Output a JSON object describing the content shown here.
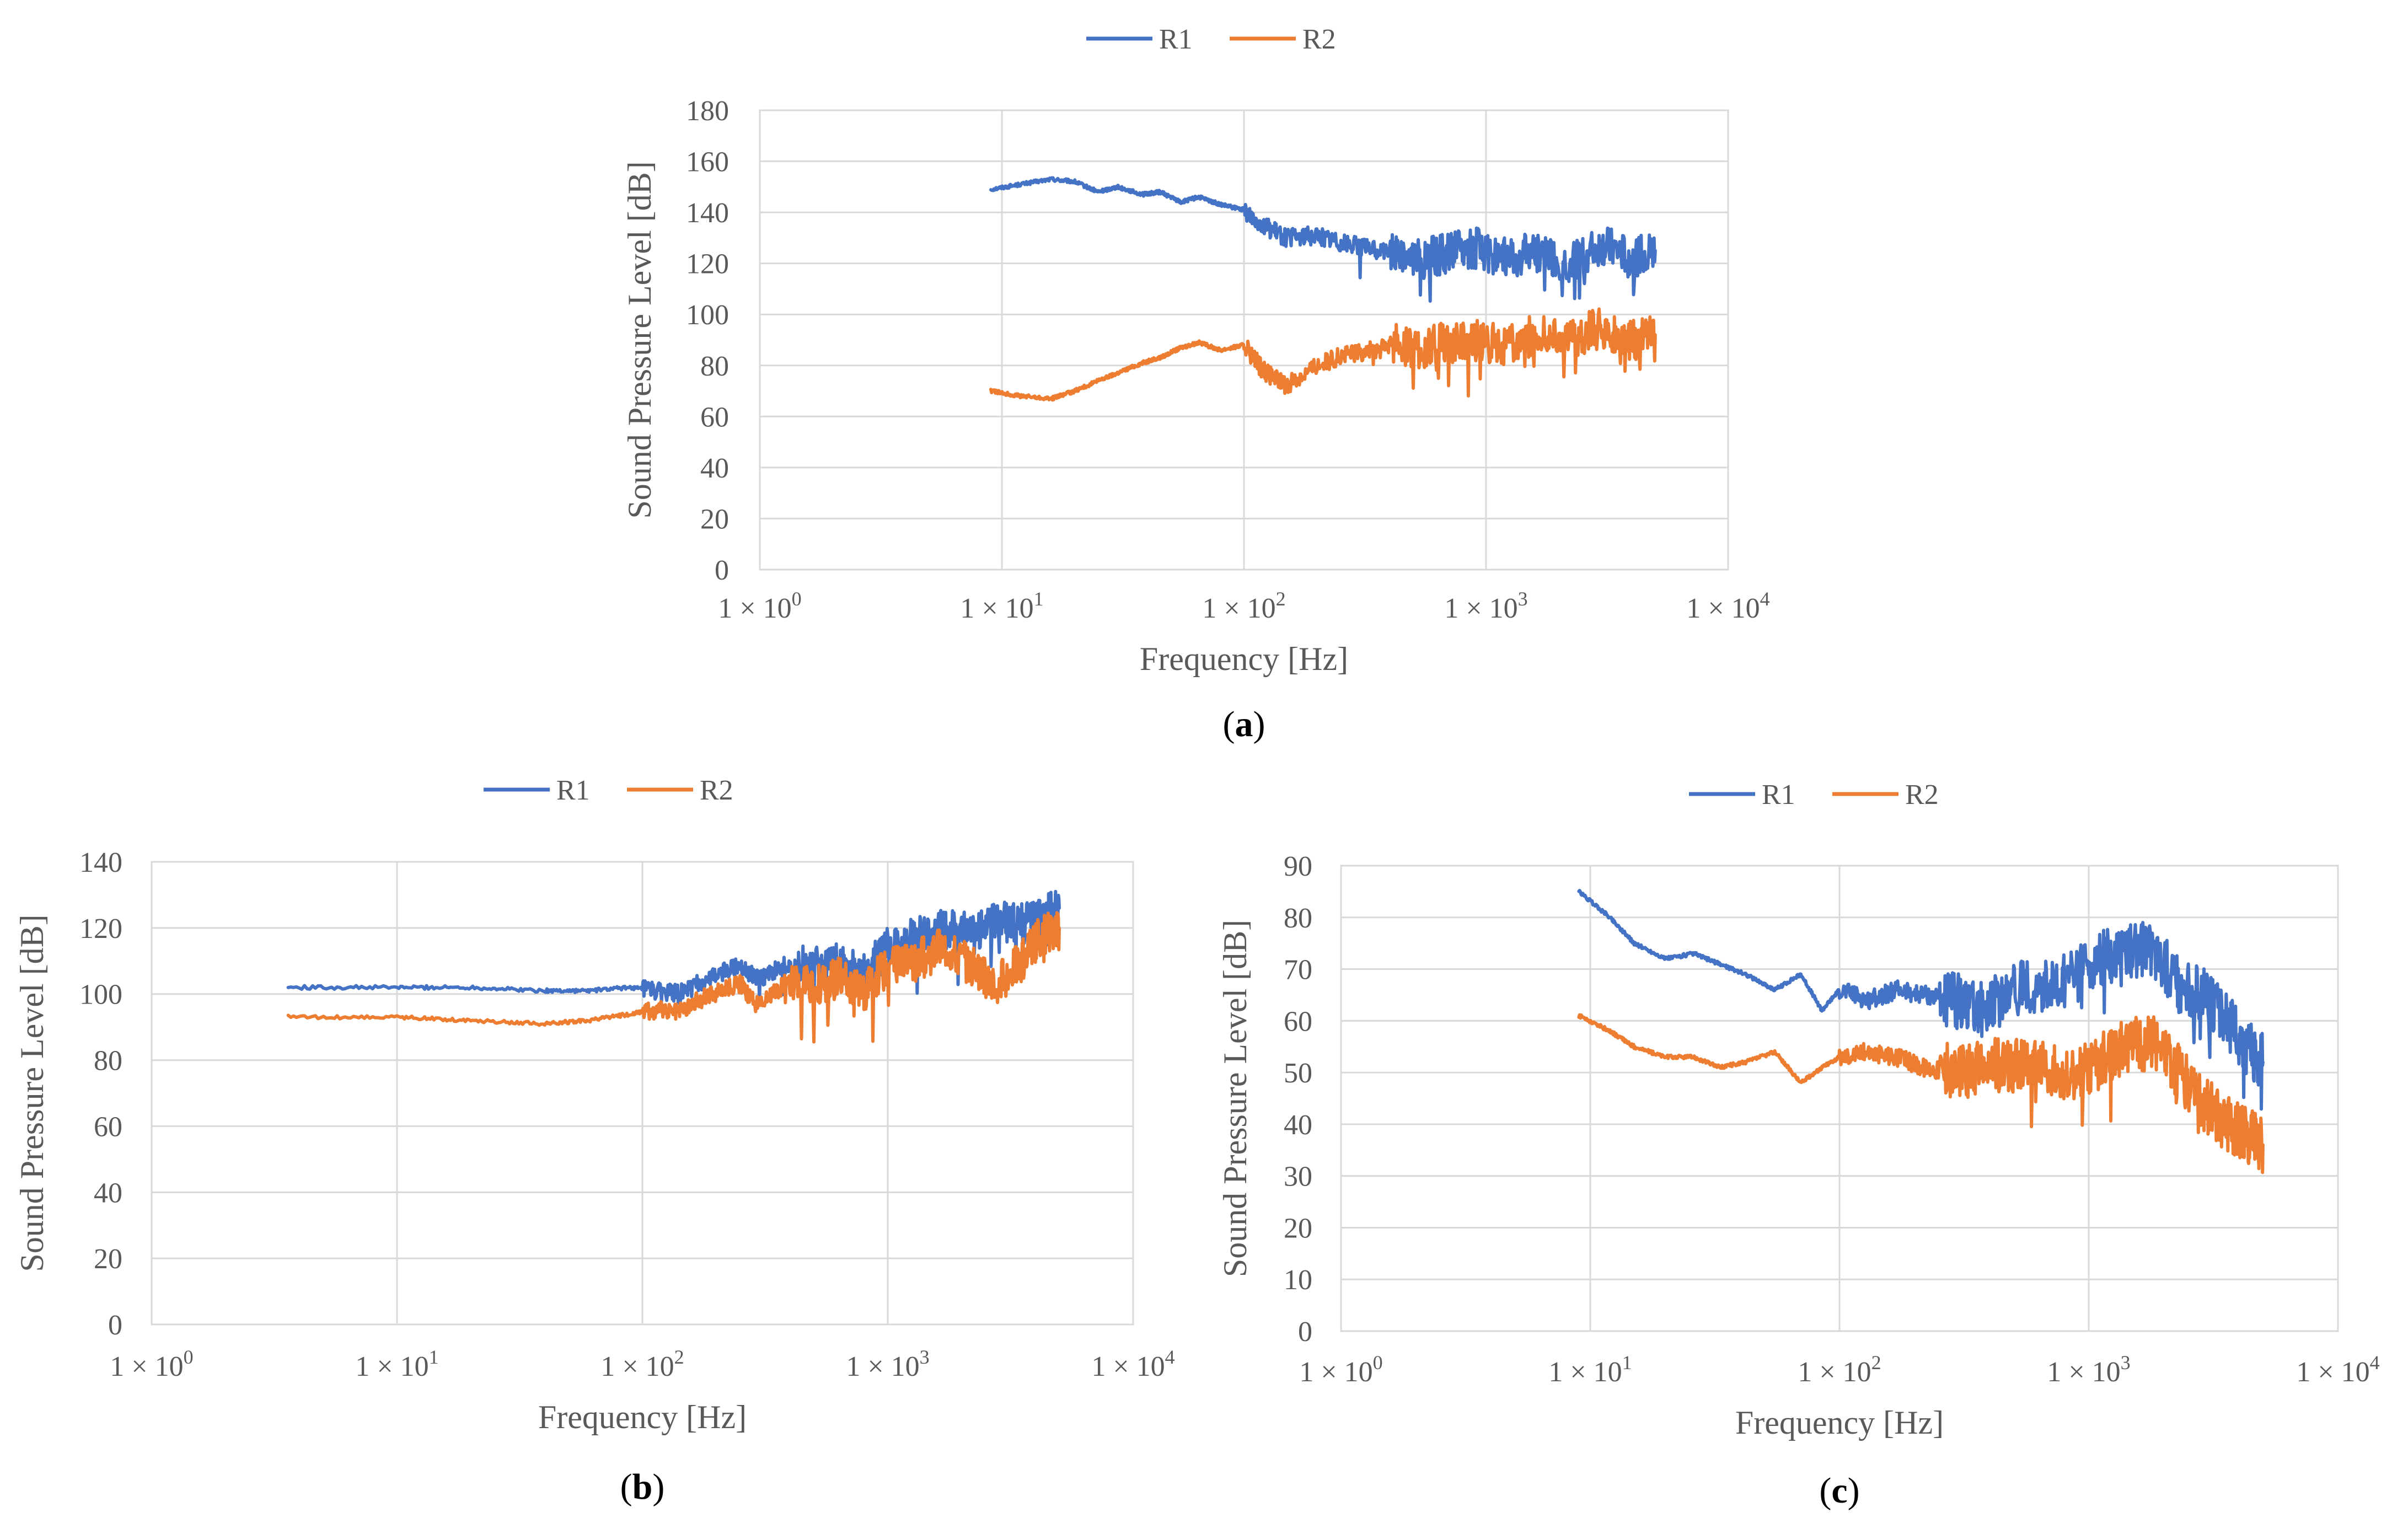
{
  "colors": {
    "R1": "#4472c4",
    "R2": "#ed7d31"
  },
  "chart_data": [
    {
      "id": "a",
      "type": "line",
      "caption_paren_open": "(",
      "caption_letter": "a",
      "caption_paren_close": ")",
      "xscale": "log",
      "xlabel": "Frequency [Hz]",
      "ylabel": "Sound Pressure Level [dB]",
      "xlim": [
        1,
        10000
      ],
      "ylim": [
        0,
        180
      ],
      "yticks": [
        0,
        20,
        40,
        60,
        80,
        100,
        120,
        140,
        160,
        180
      ],
      "xticks": [
        {
          "base": "1 × 10",
          "exp": "0"
        },
        {
          "base": "1 × 10",
          "exp": "1"
        },
        {
          "base": "1 × 10",
          "exp": "2"
        },
        {
          "base": "1 × 10",
          "exp": "3"
        },
        {
          "base": "1 × 10",
          "exp": "4"
        }
      ],
      "legend": [
        {
          "name": "R1",
          "key": "R1"
        },
        {
          "name": "R2",
          "key": "R2"
        }
      ],
      "series": [
        {
          "name": "R1",
          "x": [
            9,
            12,
            16,
            20,
            25,
            30,
            38,
            45,
            55,
            65,
            80,
            100,
            120,
            150,
            200,
            260,
            330,
            420,
            550,
            700,
            900,
            1200,
            1600,
            2200,
            3000,
            4000,
            5000
          ],
          "y": [
            149,
            151,
            153,
            152,
            148,
            150,
            147,
            148,
            144,
            146,
            143,
            141,
            135,
            130,
            131,
            128,
            126,
            124,
            122,
            124,
            126,
            122,
            125,
            120,
            127,
            122,
            125
          ]
        },
        {
          "name": "R2",
          "x": [
            9,
            12,
            16,
            20,
            25,
            30,
            38,
            45,
            55,
            65,
            80,
            100,
            120,
            150,
            200,
            260,
            330,
            420,
            550,
            700,
            900,
            1200,
            1600,
            2200,
            3000,
            4000,
            5000
          ],
          "y": [
            70,
            68,
            67,
            70,
            74,
            77,
            81,
            83,
            87,
            89,
            86,
            88,
            78,
            72,
            80,
            84,
            86,
            88,
            87,
            89,
            90,
            88,
            92,
            90,
            95,
            90,
            92
          ]
        }
      ]
    },
    {
      "id": "b",
      "type": "line",
      "caption_paren_open": "(",
      "caption_letter": "b",
      "caption_paren_close": ")",
      "xscale": "log",
      "xlabel": "Frequency [Hz]",
      "ylabel": "Sound Pressure Level [dB]",
      "xlim": [
        1,
        10000
      ],
      "ylim": [
        0,
        140
      ],
      "yticks": [
        0,
        20,
        40,
        60,
        80,
        100,
        120,
        140
      ],
      "xticks": [
        {
          "base": "1 × 10",
          "exp": "0"
        },
        {
          "base": "1 × 10",
          "exp": "1"
        },
        {
          "base": "1 × 10",
          "exp": "2"
        },
        {
          "base": "1 × 10",
          "exp": "3"
        },
        {
          "base": "1 × 10",
          "exp": "4"
        }
      ],
      "legend": [
        {
          "name": "R1",
          "key": "R1"
        },
        {
          "name": "R2",
          "key": "R2"
        }
      ],
      "series": [
        {
          "name": "R1",
          "x": [
            3.6,
            10,
            20,
            40,
            60,
            90,
            110,
            140,
            180,
            250,
            300,
            380,
            500,
            650,
            800,
            1000,
            1300,
            1700,
            2200,
            2800,
            3500,
            4200,
            5000
          ],
          "y": [
            102,
            102,
            102,
            101,
            101,
            102,
            101,
            100,
            104,
            109,
            104,
            109,
            108,
            110,
            106,
            114,
            117,
            120,
            118,
            122,
            121,
            124,
            126
          ]
        },
        {
          "name": "R2",
          "x": [
            3.6,
            10,
            20,
            40,
            60,
            90,
            110,
            140,
            180,
            250,
            300,
            380,
            500,
            650,
            800,
            1000,
            1300,
            1700,
            2200,
            2800,
            3500,
            4200,
            5000
          ],
          "y": [
            93,
            93,
            92,
            91,
            92,
            94,
            95,
            95,
            99,
            103,
            96,
            103,
            102,
            105,
            101,
            108,
            110,
            114,
            108,
            103,
            110,
            118,
            120
          ]
        }
      ]
    },
    {
      "id": "c",
      "type": "line",
      "caption_paren_open": "(",
      "caption_letter": "c",
      "caption_paren_close": ")",
      "xscale": "log",
      "xlabel": "Frequency [Hz]",
      "ylabel": "Sound Pressure Level [dB]",
      "xlim": [
        1,
        10000
      ],
      "ylim": [
        0,
        90
      ],
      "yticks": [
        0,
        10,
        20,
        30,
        40,
        50,
        60,
        70,
        80,
        90
      ],
      "xticks": [
        {
          "base": "1 × 10",
          "exp": "0"
        },
        {
          "base": "1 × 10",
          "exp": "1"
        },
        {
          "base": "1 × 10",
          "exp": "2"
        },
        {
          "base": "1 × 10",
          "exp": "3"
        },
        {
          "base": "1 × 10",
          "exp": "4"
        }
      ],
      "legend": [
        {
          "name": "R1",
          "key": "R1"
        },
        {
          "name": "R2",
          "key": "R2"
        }
      ],
      "series": [
        {
          "name": "R1",
          "x": [
            9,
            12,
            15,
            20,
            26,
            33,
            42,
            55,
            70,
            85,
            100,
            130,
            170,
            220,
            290,
            380,
            500,
            650,
            850,
            1100,
            1400,
            1800,
            2300,
            2900,
            3600,
            4300,
            5000
          ],
          "y": [
            85,
            80,
            75,
            72,
            73,
            71,
            69,
            66,
            69,
            62,
            66,
            64,
            66,
            65,
            64,
            62,
            66,
            67,
            68,
            72,
            73,
            74,
            67,
            65,
            60,
            55,
            52
          ]
        },
        {
          "name": "R2",
          "x": [
            9,
            12,
            15,
            20,
            26,
            33,
            42,
            55,
            70,
            85,
            100,
            130,
            170,
            220,
            290,
            380,
            500,
            650,
            850,
            1100,
            1400,
            1800,
            2300,
            2900,
            3600,
            4300,
            5000
          ],
          "y": [
            61,
            58,
            55,
            53,
            53,
            51,
            52,
            54,
            48,
            51,
            53,
            54,
            53,
            51,
            50,
            51,
            52,
            51,
            50,
            52,
            55,
            56,
            50,
            44,
            40,
            38,
            36
          ]
        }
      ]
    }
  ]
}
